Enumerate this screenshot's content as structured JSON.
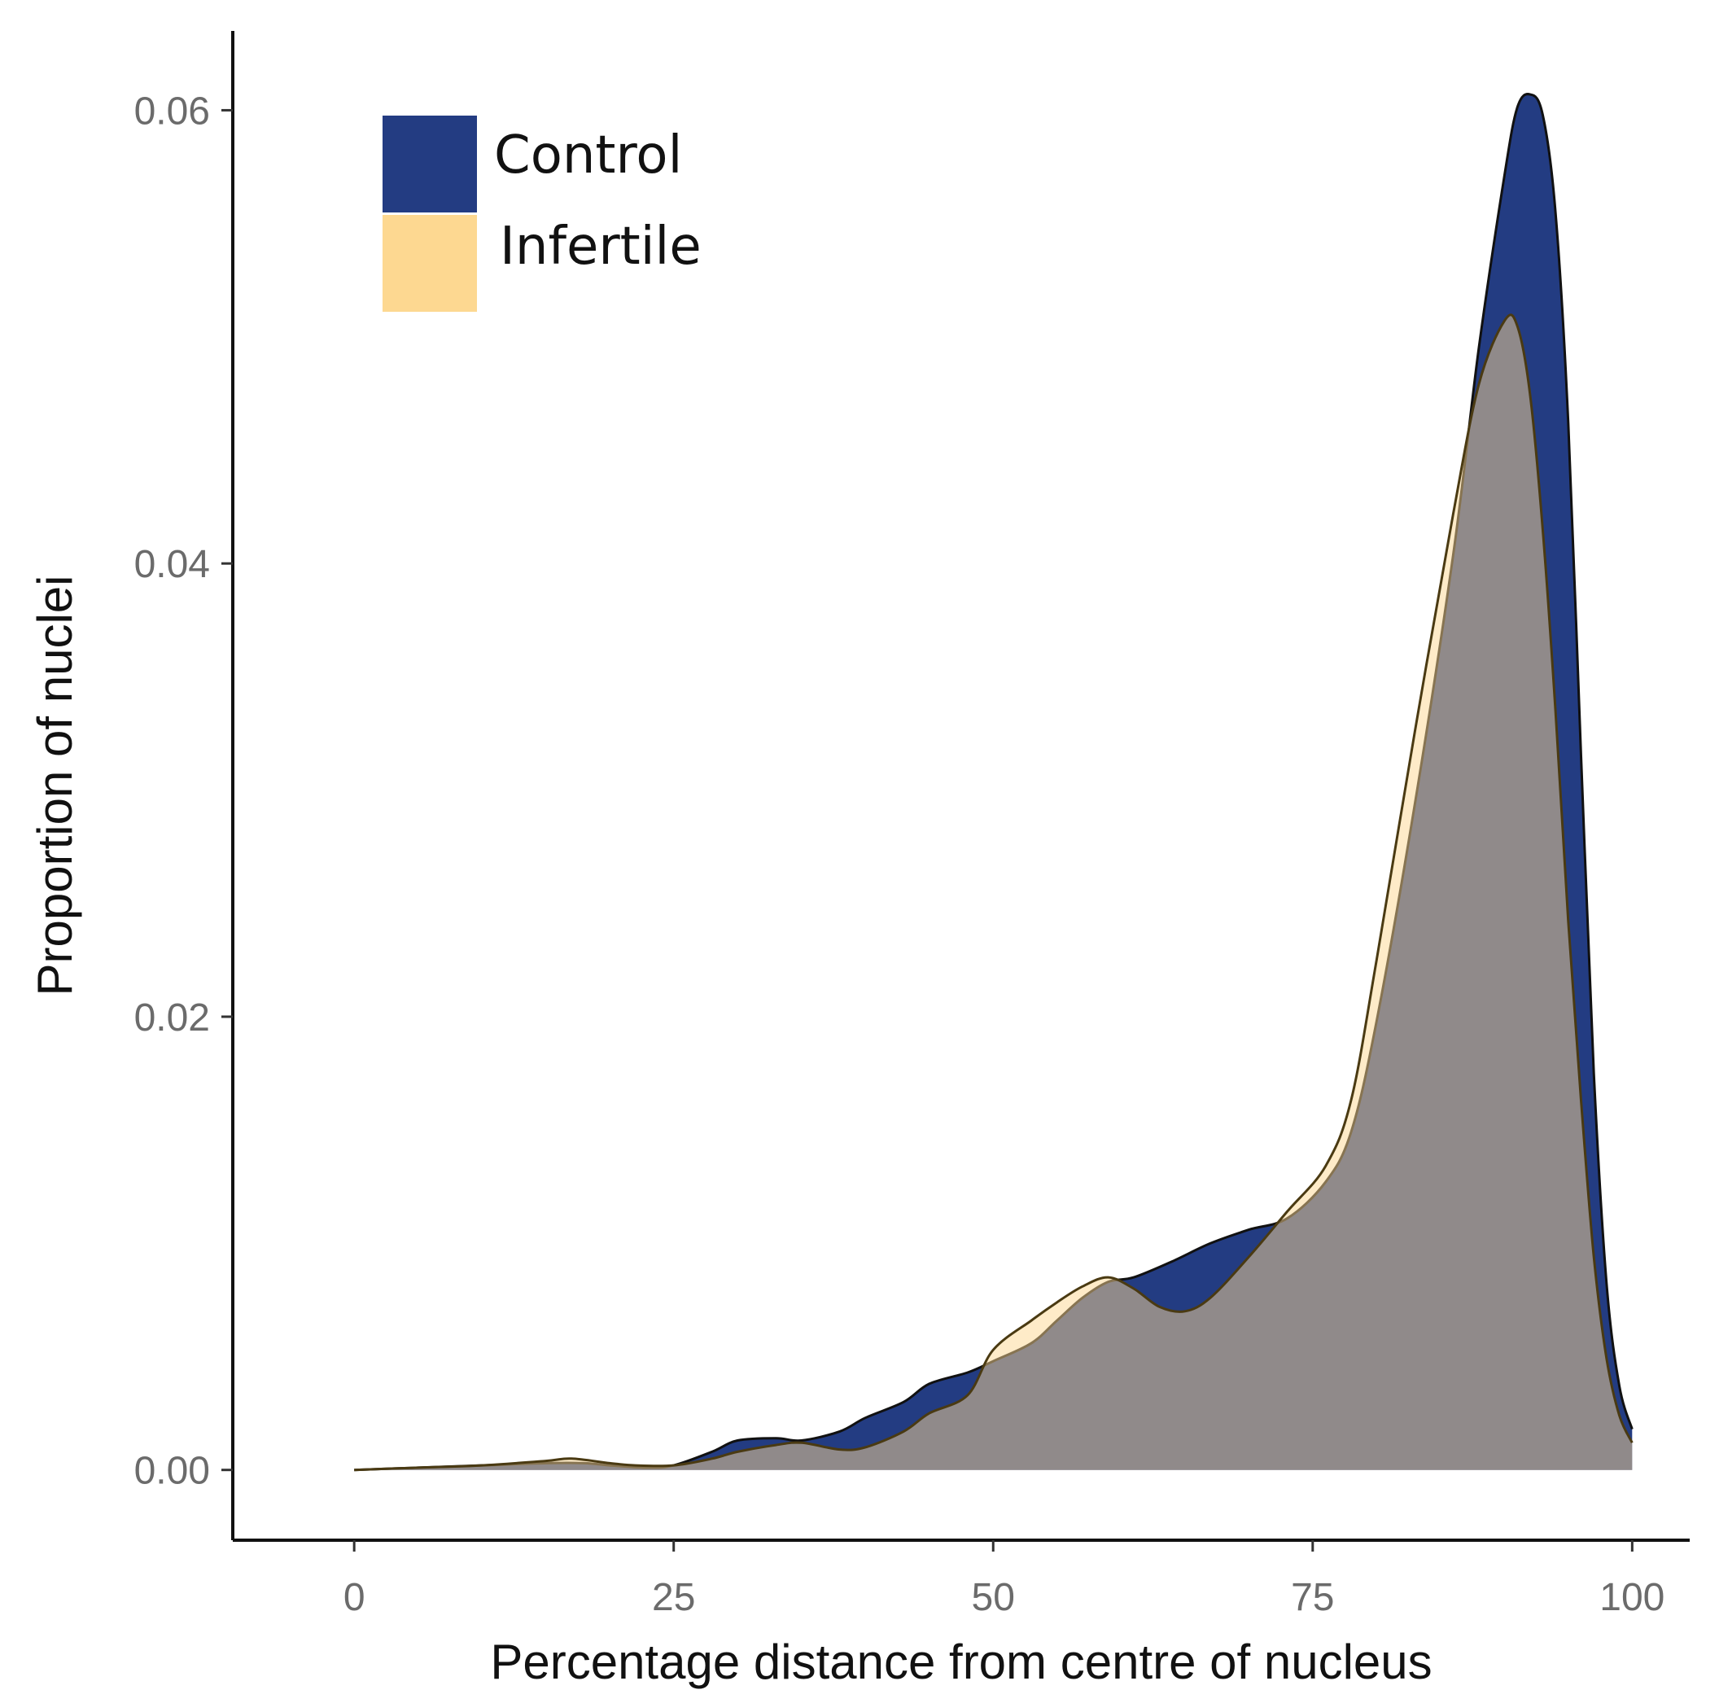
{
  "chart_data": {
    "type": "area",
    "xlabel": "Percentage distance from centre of nucleus",
    "ylabel": "Proportion of nuclei",
    "xlim": [
      -9.5,
      104.5
    ],
    "ylim": [
      -0.0031,
      0.0635
    ],
    "x_ticks": [
      0,
      25,
      50,
      75,
      100
    ],
    "x_tick_labels": [
      "0",
      "25",
      "50",
      "75",
      "100"
    ],
    "y_ticks": [
      0,
      0.02,
      0.04,
      0.06
    ],
    "y_tick_labels": [
      "0.00",
      "0.02",
      "0.04",
      "0.06"
    ],
    "grid": false,
    "legend_position": "top-left",
    "series": [
      {
        "name": "Control",
        "color": "#233c82",
        "x": [
          0,
          5,
          10,
          15,
          18,
          20,
          23,
          25,
          28,
          30,
          33,
          35,
          38,
          40,
          43,
          45,
          48,
          50,
          53,
          55,
          57,
          59,
          61,
          64,
          67,
          70,
          73,
          76,
          78,
          80,
          83,
          86,
          88,
          90,
          91,
          92,
          93,
          94,
          95,
          96,
          97,
          98,
          99,
          100
        ],
        "values": [
          0,
          0.0001,
          0.0002,
          0.0003,
          0.0003,
          0.0002,
          0.0001,
          0.0002,
          0.0008,
          0.0013,
          0.0014,
          0.0013,
          0.0017,
          0.0023,
          0.003,
          0.0038,
          0.0043,
          0.0048,
          0.0056,
          0.0066,
          0.0076,
          0.0083,
          0.0085,
          0.0092,
          0.01,
          0.0106,
          0.0111,
          0.0127,
          0.0149,
          0.0198,
          0.0294,
          0.0404,
          0.0495,
          0.0571,
          0.0601,
          0.0607,
          0.0598,
          0.0555,
          0.0462,
          0.0315,
          0.0175,
          0.0082,
          0.0037,
          0.0018
        ]
      },
      {
        "name": "Infertile",
        "color": "#fdd891",
        "x": [
          0,
          5,
          10,
          15,
          17,
          20,
          22,
          25,
          28,
          30,
          33,
          35,
          38,
          40,
          43,
          45,
          48,
          50,
          53,
          55,
          57,
          59,
          61,
          63,
          65,
          67,
          70,
          73,
          76,
          78,
          80,
          83,
          86,
          88,
          90,
          91,
          92,
          93,
          94,
          95,
          96,
          97,
          98,
          99,
          100
        ],
        "values": [
          0,
          0.0001,
          0.0002,
          0.0004,
          0.0005,
          0.0003,
          0.0002,
          0.0002,
          0.0005,
          0.0008,
          0.0011,
          0.0012,
          0.0009,
          0.001,
          0.0017,
          0.0025,
          0.0033,
          0.0053,
          0.0066,
          0.0074,
          0.0081,
          0.0085,
          0.008,
          0.0072,
          0.007,
          0.0076,
          0.0094,
          0.0114,
          0.0134,
          0.0163,
          0.0225,
          0.0326,
          0.0422,
          0.0479,
          0.0507,
          0.0505,
          0.0475,
          0.0415,
          0.0335,
          0.0242,
          0.0163,
          0.0094,
          0.0049,
          0.0024,
          0.0012
        ]
      }
    ]
  }
}
